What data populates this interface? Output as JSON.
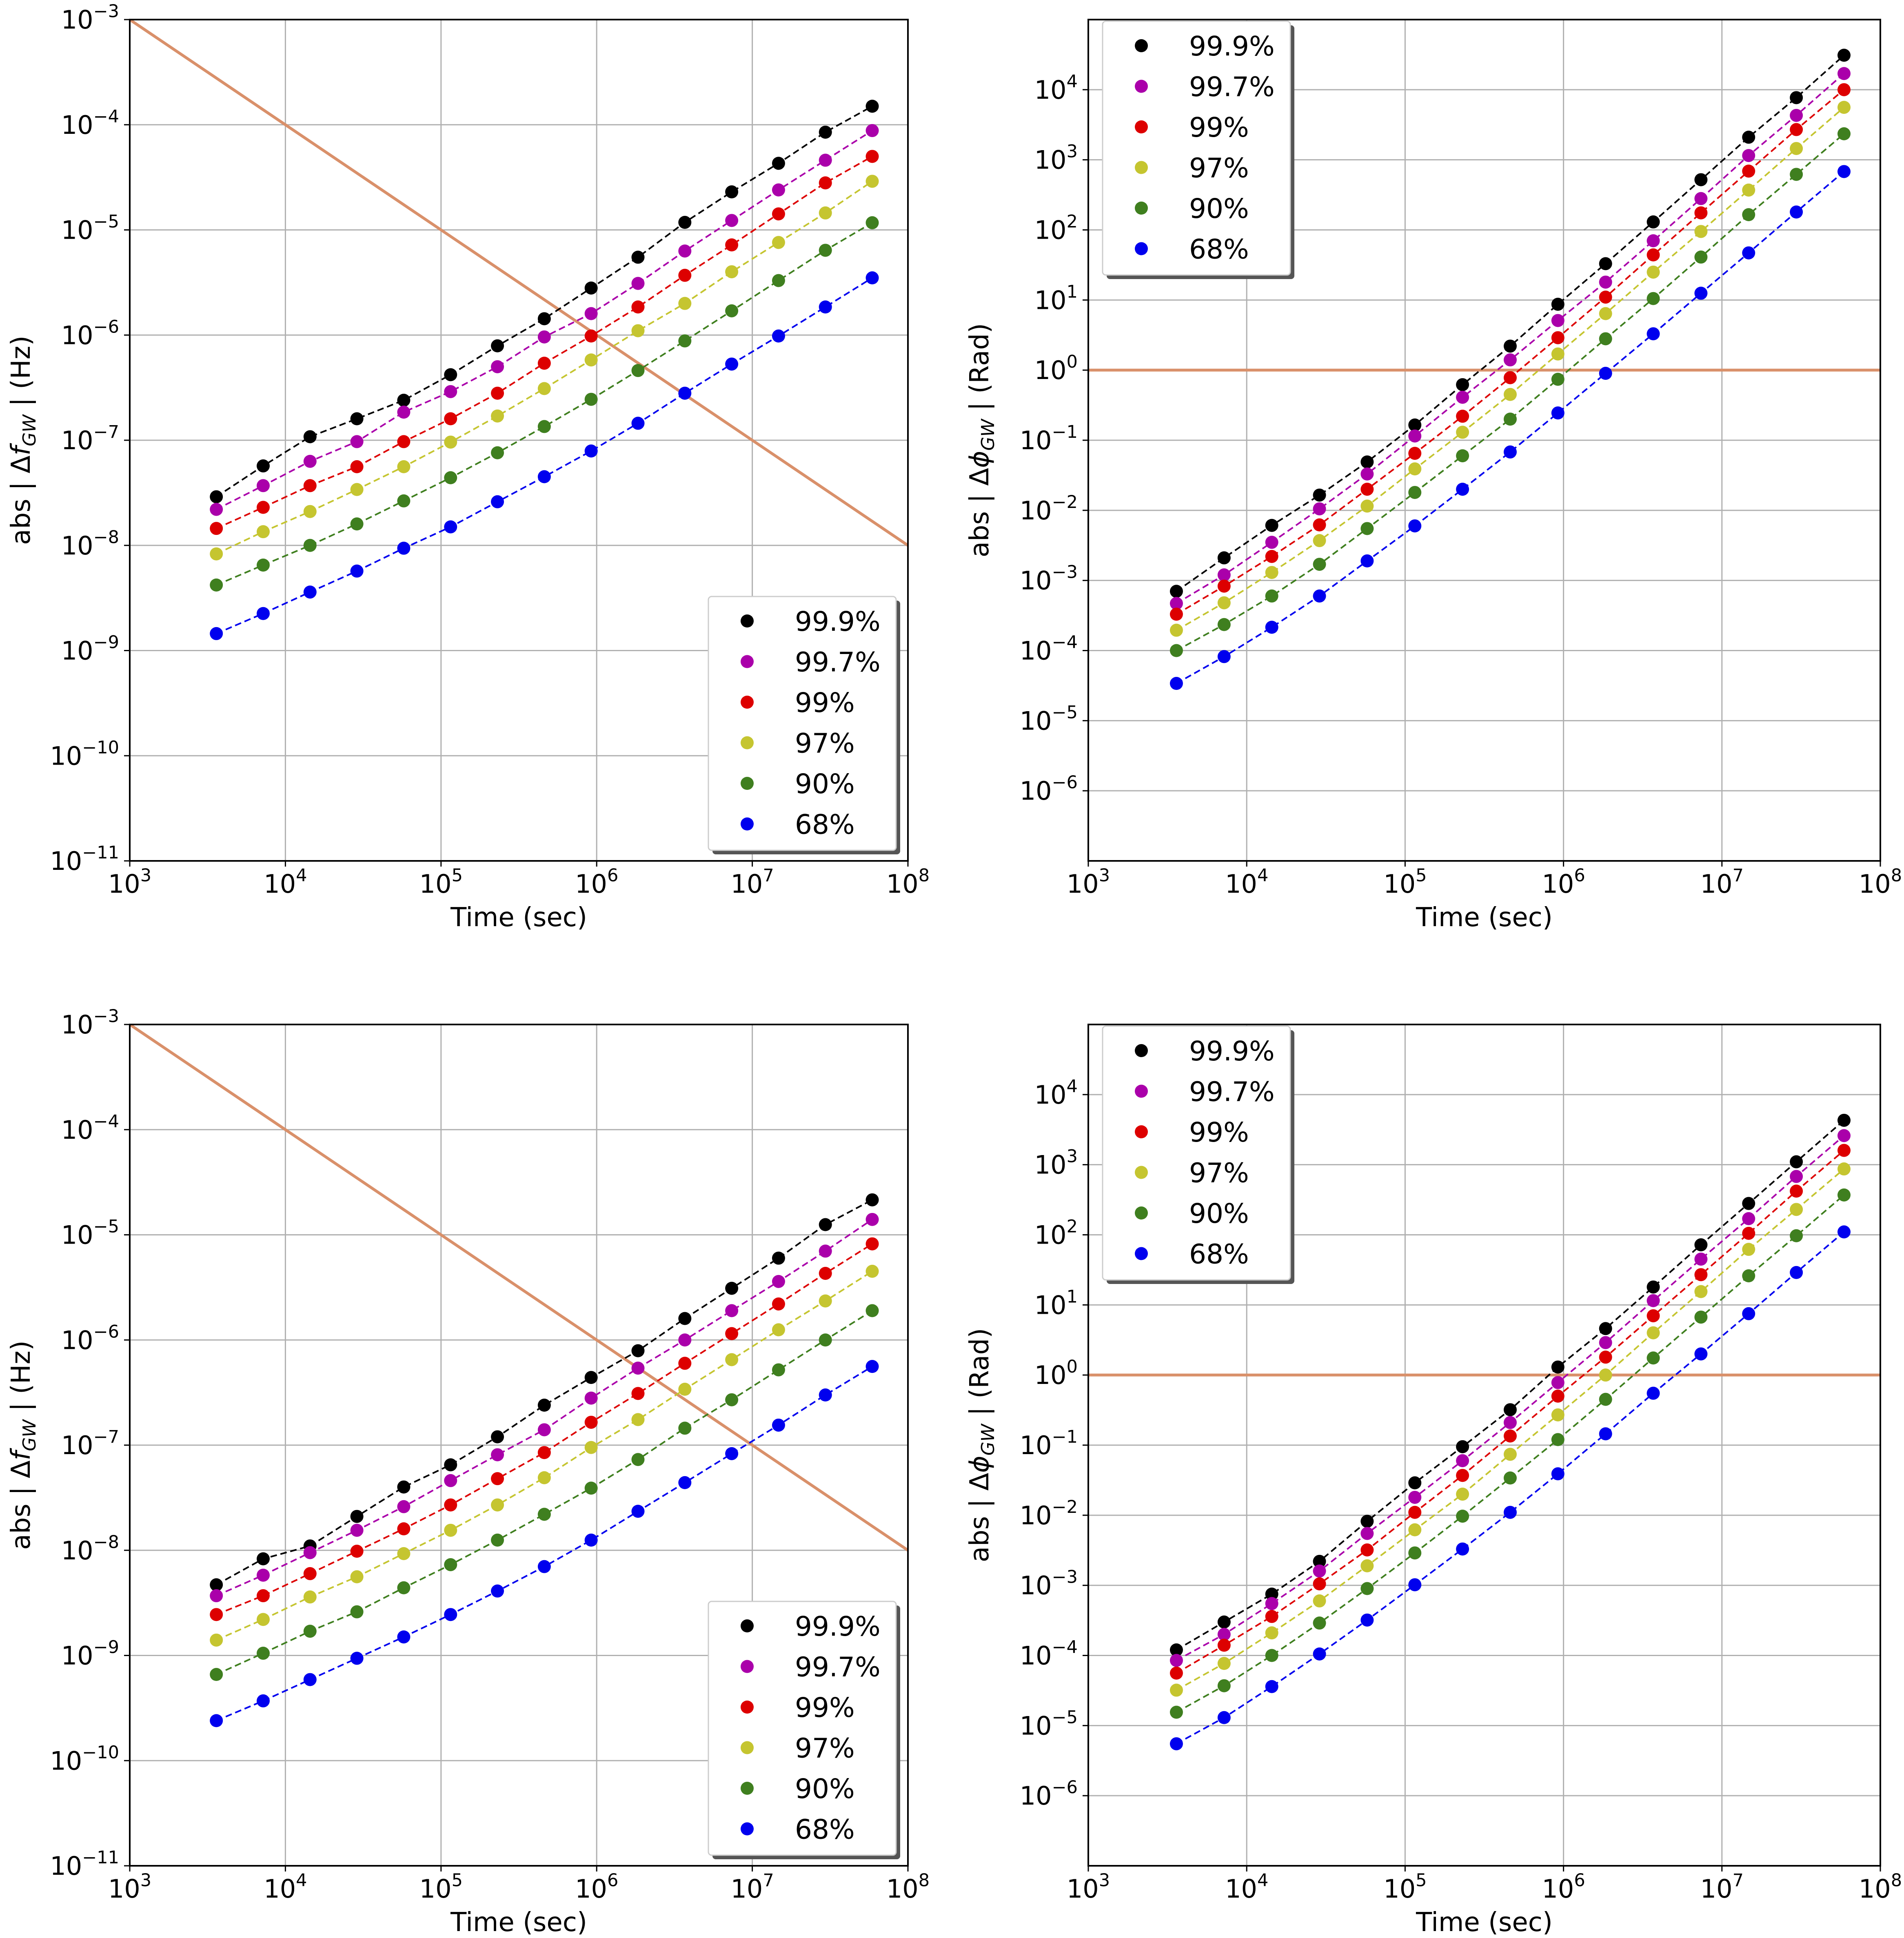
{
  "colors": {
    "99.9%": "#000000",
    "99.7%": "#aa00aa",
    "99%": "#dd0000",
    "97%": "#c5c530",
    "90%": "#3f7f1f",
    "68%": "#0000ee",
    "threshold": "#d9906a",
    "grid": "#b0b0b0"
  },
  "chart_data": [
    {
      "id": "top-left",
      "type": "scatter",
      "xscale": "log",
      "yscale": "log",
      "xlim": [
        1000,
        100000000
      ],
      "ylim": [
        1e-11,
        0.001
      ],
      "xlabel": "Time (sec)",
      "ylabel": "abs | Δf_GW |  (Hz)",
      "ylabel_parts": {
        "pre": "abs | Δ",
        "var": "f",
        "sub": "GW",
        "post": " |  (Hz)"
      },
      "xticks": [
        {
          "base": "10",
          "exp": "3"
        },
        {
          "base": "10",
          "exp": "4"
        },
        {
          "base": "10",
          "exp": "5"
        },
        {
          "base": "10",
          "exp": "6"
        },
        {
          "base": "10",
          "exp": "7"
        },
        {
          "base": "10",
          "exp": "8"
        }
      ],
      "yticks": [
        {
          "base": "10",
          "exp": "−11"
        },
        {
          "base": "10",
          "exp": "−10"
        },
        {
          "base": "10",
          "exp": "−9"
        },
        {
          "base": "10",
          "exp": "−8"
        },
        {
          "base": "10",
          "exp": "−7"
        },
        {
          "base": "10",
          "exp": "−6"
        },
        {
          "base": "10",
          "exp": "−5"
        },
        {
          "base": "10",
          "exp": "−4"
        },
        {
          "base": "10",
          "exp": "−3"
        }
      ],
      "grid": true,
      "legend": {
        "loc": "lower-right",
        "entries": [
          "99.9%",
          "99.7%",
          "99%",
          "97%",
          "90%",
          "68%"
        ]
      },
      "x": [
        3600,
        7200,
        14400,
        28800,
        57600,
        115200,
        230400,
        460800,
        921600,
        1843200,
        3686400,
        7372800,
        14745600,
        29491200,
        58982400
      ],
      "series": [
        {
          "name": "99.9%",
          "values": [
            2.9e-08,
            5.7e-08,
            1.08e-07,
            1.6e-07,
            2.4e-07,
            4.2e-07,
            7.9e-07,
            1.43e-06,
            2.8e-06,
            5.5e-06,
            1.18e-05,
            2.3e-05,
            4.3e-05,
            8.5e-05,
            0.00015
          ]
        },
        {
          "name": "99.7%",
          "values": [
            2.2e-08,
            3.7e-08,
            6.3e-08,
            9.7e-08,
            1.85e-07,
            2.9e-07,
            5e-07,
            9.6e-07,
            1.6e-06,
            3.1e-06,
            6.3e-06,
            1.23e-05,
            2.4e-05,
            4.6e-05,
            8.8e-05
          ]
        },
        {
          "name": "99%",
          "values": [
            1.45e-08,
            2.3e-08,
            3.7e-08,
            5.6e-08,
            9.7e-08,
            1.6e-07,
            2.8e-07,
            5.4e-07,
            9.8e-07,
            1.85e-06,
            3.7e-06,
            7.2e-06,
            1.42e-05,
            2.8e-05,
            5e-05
          ]
        },
        {
          "name": "97%",
          "values": [
            8.3e-09,
            1.35e-08,
            2.1e-08,
            3.4e-08,
            5.6e-08,
            9.6e-08,
            1.7e-07,
            3.1e-07,
            5.8e-07,
            1.1e-06,
            2e-06,
            4e-06,
            7.6e-06,
            1.45e-05,
            2.9e-05
          ]
        },
        {
          "name": "90%",
          "values": [
            4.2e-09,
            6.5e-09,
            1e-08,
            1.6e-08,
            2.65e-08,
            4.4e-08,
            7.6e-08,
            1.35e-07,
            2.45e-07,
            4.6e-07,
            8.8e-07,
            1.7e-06,
            3.3e-06,
            6.4e-06,
            1.17e-05
          ]
        },
        {
          "name": "68%",
          "values": [
            1.45e-09,
            2.25e-09,
            3.6e-09,
            5.7e-09,
            9.4e-09,
            1.5e-08,
            2.6e-08,
            4.5e-08,
            7.9e-08,
            1.45e-07,
            2.8e-07,
            5.3e-07,
            9.8e-07,
            1.85e-06,
            3.5e-06
          ]
        }
      ],
      "threshold": {
        "type": "line",
        "x": [
          1000,
          100000000
        ],
        "y": [
          0.001,
          1e-08
        ]
      }
    },
    {
      "id": "top-right",
      "type": "scatter",
      "xscale": "log",
      "yscale": "log",
      "xlim": [
        1000,
        100000000
      ],
      "ylim": [
        1e-07,
        100000
      ],
      "xlabel": "Time (sec)",
      "ylabel": "abs | Δϕ_GW |  (Rad)",
      "ylabel_parts": {
        "pre": "abs | Δ",
        "var": "ϕ",
        "sub": "GW",
        "post": " |  (Rad)"
      },
      "xticks": [
        {
          "base": "10",
          "exp": "3"
        },
        {
          "base": "10",
          "exp": "4"
        },
        {
          "base": "10",
          "exp": "5"
        },
        {
          "base": "10",
          "exp": "6"
        },
        {
          "base": "10",
          "exp": "7"
        },
        {
          "base": "10",
          "exp": "8"
        }
      ],
      "yticks": [
        {
          "base": "10",
          "exp": "−6"
        },
        {
          "base": "10",
          "exp": "−5"
        },
        {
          "base": "10",
          "exp": "−4"
        },
        {
          "base": "10",
          "exp": "−3"
        },
        {
          "base": "10",
          "exp": "−2"
        },
        {
          "base": "10",
          "exp": "−1"
        },
        {
          "base": "10",
          "exp": "0"
        },
        {
          "base": "10",
          "exp": "1"
        },
        {
          "base": "10",
          "exp": "2"
        },
        {
          "base": "10",
          "exp": "3"
        },
        {
          "base": "10",
          "exp": "4"
        }
      ],
      "grid": true,
      "legend": {
        "loc": "upper-left",
        "entries": [
          "99.9%",
          "99.7%",
          "99%",
          "97%",
          "90%",
          "68%"
        ]
      },
      "x": [
        3600,
        7200,
        14400,
        28800,
        57600,
        115200,
        230400,
        460800,
        921600,
        1843200,
        3686400,
        7372800,
        14745600,
        29491200,
        58982400
      ],
      "series": [
        {
          "name": "99.9%",
          "values": [
            0.0007,
            0.0021,
            0.0061,
            0.0165,
            0.049,
            0.165,
            0.62,
            2.2,
            8.7,
            33,
            130,
            520,
            2100,
            7700,
            31000
          ]
        },
        {
          "name": "99.7%",
          "values": [
            0.00047,
            0.0012,
            0.0035,
            0.0105,
            0.033,
            0.115,
            0.41,
            1.4,
            5.1,
            18,
            70,
            280,
            1150,
            4300,
            17000
          ]
        },
        {
          "name": "99%",
          "values": [
            0.00033,
            0.00083,
            0.0022,
            0.0062,
            0.02,
            0.065,
            0.22,
            0.78,
            2.9,
            11,
            44,
            175,
            690,
            2700,
            10000
          ]
        },
        {
          "name": "97%",
          "values": [
            0.000195,
            0.00048,
            0.0013,
            0.0037,
            0.0115,
            0.039,
            0.13,
            0.45,
            1.7,
            6.4,
            25,
            95,
            370,
            1450,
            5600
          ]
        },
        {
          "name": "90%",
          "values": [
            0.0001,
            0.000235,
            0.0006,
            0.0017,
            0.0055,
            0.018,
            0.06,
            0.2,
            0.74,
            2.8,
            10.5,
            41,
            165,
            620,
            2350
          ]
        },
        {
          "name": "68%",
          "values": [
            3.4e-05,
            8.2e-05,
            0.000215,
            0.0006,
            0.0019,
            0.006,
            0.02,
            0.068,
            0.245,
            0.9,
            3.3,
            12.5,
            47,
            180,
            680
          ]
        }
      ],
      "threshold": {
        "type": "hline",
        "y": 1
      }
    },
    {
      "id": "bottom-left",
      "type": "scatter",
      "xscale": "log",
      "yscale": "log",
      "xlim": [
        1000,
        100000000
      ],
      "ylim": [
        1e-11,
        0.001
      ],
      "xlabel": "Time (sec)",
      "ylabel": "abs | Δf_GW |  (Hz)",
      "ylabel_parts": {
        "pre": "abs | Δ",
        "var": "f",
        "sub": "GW",
        "post": " |  (Hz)"
      },
      "xticks": [
        {
          "base": "10",
          "exp": "3"
        },
        {
          "base": "10",
          "exp": "4"
        },
        {
          "base": "10",
          "exp": "5"
        },
        {
          "base": "10",
          "exp": "6"
        },
        {
          "base": "10",
          "exp": "7"
        },
        {
          "base": "10",
          "exp": "8"
        }
      ],
      "yticks": [
        {
          "base": "10",
          "exp": "−11"
        },
        {
          "base": "10",
          "exp": "−10"
        },
        {
          "base": "10",
          "exp": "−9"
        },
        {
          "base": "10",
          "exp": "−8"
        },
        {
          "base": "10",
          "exp": "−7"
        },
        {
          "base": "10",
          "exp": "−6"
        },
        {
          "base": "10",
          "exp": "−5"
        },
        {
          "base": "10",
          "exp": "−4"
        },
        {
          "base": "10",
          "exp": "−3"
        }
      ],
      "grid": true,
      "legend": {
        "loc": "lower-right",
        "entries": [
          "99.9%",
          "99.7%",
          "99%",
          "97%",
          "90%",
          "68%"
        ]
      },
      "x": [
        3600,
        7200,
        14400,
        28800,
        57600,
        115200,
        230400,
        460800,
        921600,
        1843200,
        3686400,
        7372800,
        14745600,
        29491200,
        58982400
      ],
      "series": [
        {
          "name": "99.9%",
          "values": [
            4.7e-09,
            8.3e-09,
            1.1e-08,
            2.1e-08,
            4e-08,
            6.5e-08,
            1.2e-07,
            2.4e-07,
            4.4e-07,
            7.9e-07,
            1.6e-06,
            3.1e-06,
            6e-06,
            1.25e-05,
            2.15e-05
          ]
        },
        {
          "name": "99.7%",
          "values": [
            3.7e-09,
            5.8e-09,
            9.5e-09,
            1.55e-08,
            2.6e-08,
            4.6e-08,
            8.1e-08,
            1.4e-07,
            2.8e-07,
            5.4e-07,
            1e-06,
            1.9e-06,
            3.6e-06,
            7e-06,
            1.4e-05
          ]
        },
        {
          "name": "99%",
          "values": [
            2.45e-09,
            3.7e-09,
            6e-09,
            9.8e-09,
            1.6e-08,
            2.7e-08,
            4.8e-08,
            8.5e-08,
            1.65e-07,
            3.1e-07,
            6e-07,
            1.15e-06,
            2.2e-06,
            4.3e-06,
            8.2e-06
          ]
        },
        {
          "name": "97%",
          "values": [
            1.4e-09,
            2.2e-09,
            3.6e-09,
            5.6e-09,
            9.3e-09,
            1.55e-08,
            2.7e-08,
            4.9e-08,
            9.5e-08,
            1.75e-07,
            3.4e-07,
            6.5e-07,
            1.25e-06,
            2.35e-06,
            4.5e-06
          ]
        },
        {
          "name": "90%",
          "values": [
            6.6e-10,
            1.05e-09,
            1.7e-09,
            2.6e-09,
            4.4e-09,
            7.3e-09,
            1.25e-08,
            2.2e-08,
            3.9e-08,
            7.3e-08,
            1.45e-07,
            2.7e-07,
            5.2e-07,
            1e-06,
            1.9e-06
          ]
        },
        {
          "name": "68%",
          "values": [
            2.4e-10,
            3.7e-10,
            5.9e-10,
            9.4e-10,
            1.5e-09,
            2.45e-09,
            4.1e-09,
            7e-09,
            1.25e-08,
            2.35e-08,
            4.4e-08,
            8.3e-08,
            1.55e-07,
            3e-07,
            5.6e-07
          ]
        }
      ],
      "threshold": {
        "type": "line",
        "x": [
          1000,
          100000000
        ],
        "y": [
          0.001,
          1e-08
        ]
      }
    },
    {
      "id": "bottom-right",
      "type": "scatter",
      "xscale": "log",
      "yscale": "log",
      "xlim": [
        1000,
        100000000
      ],
      "ylim": [
        1e-07,
        100000
      ],
      "xlabel": "Time (sec)",
      "ylabel": "abs | Δϕ_GW |  (Rad)",
      "ylabel_parts": {
        "pre": "abs | Δ",
        "var": "ϕ",
        "sub": "GW",
        "post": " |  (Rad)"
      },
      "xticks": [
        {
          "base": "10",
          "exp": "3"
        },
        {
          "base": "10",
          "exp": "4"
        },
        {
          "base": "10",
          "exp": "5"
        },
        {
          "base": "10",
          "exp": "6"
        },
        {
          "base": "10",
          "exp": "7"
        },
        {
          "base": "10",
          "exp": "8"
        }
      ],
      "yticks": [
        {
          "base": "10",
          "exp": "−6"
        },
        {
          "base": "10",
          "exp": "−5"
        },
        {
          "base": "10",
          "exp": "−4"
        },
        {
          "base": "10",
          "exp": "−3"
        },
        {
          "base": "10",
          "exp": "−2"
        },
        {
          "base": "10",
          "exp": "−1"
        },
        {
          "base": "10",
          "exp": "0"
        },
        {
          "base": "10",
          "exp": "1"
        },
        {
          "base": "10",
          "exp": "2"
        },
        {
          "base": "10",
          "exp": "3"
        },
        {
          "base": "10",
          "exp": "4"
        }
      ],
      "grid": true,
      "legend": {
        "loc": "upper-left",
        "entries": [
          "99.9%",
          "99.7%",
          "99%",
          "97%",
          "90%",
          "68%"
        ]
      },
      "x": [
        3600,
        7200,
        14400,
        28800,
        57600,
        115200,
        230400,
        460800,
        921600,
        1843200,
        3686400,
        7372800,
        14745600,
        29491200,
        58982400
      ],
      "series": [
        {
          "name": "99.9%",
          "values": [
            0.00012,
            0.0003,
            0.00075,
            0.0022,
            0.0082,
            0.029,
            0.095,
            0.32,
            1.3,
            4.6,
            18,
            72,
            280,
            1100,
            4300
          ]
        },
        {
          "name": "99.7%",
          "values": [
            8.5e-05,
            0.0002,
            0.00055,
            0.0016,
            0.0055,
            0.018,
            0.06,
            0.21,
            0.78,
            2.9,
            11.5,
            45,
            170,
            680,
            2600
          ]
        },
        {
          "name": "99%",
          "values": [
            5.6e-05,
            0.00014,
            0.00036,
            0.00105,
            0.0032,
            0.011,
            0.037,
            0.135,
            0.5,
            1.8,
            7.0,
            27,
            105,
            420,
            1600
          ]
        },
        {
          "name": "97%",
          "values": [
            3.2e-05,
            7.7e-05,
            0.00021,
            0.0006,
            0.0019,
            0.0062,
            0.02,
            0.074,
            0.27,
            1.0,
            4.0,
            15.5,
            62,
            230,
            870
          ]
        },
        {
          "name": "90%",
          "values": [
            1.55e-05,
            3.7e-05,
            0.0001,
            0.00029,
            0.0009,
            0.0029,
            0.0097,
            0.034,
            0.12,
            0.45,
            1.75,
            6.7,
            26,
            97,
            370
          ]
        },
        {
          "name": "68%",
          "values": [
            5.5e-06,
            1.3e-05,
            3.6e-05,
            0.000105,
            0.00032,
            0.00102,
            0.0033,
            0.011,
            0.039,
            0.145,
            0.55,
            2.0,
            7.5,
            29,
            110
          ]
        }
      ],
      "threshold": {
        "type": "hline",
        "y": 1
      }
    }
  ]
}
